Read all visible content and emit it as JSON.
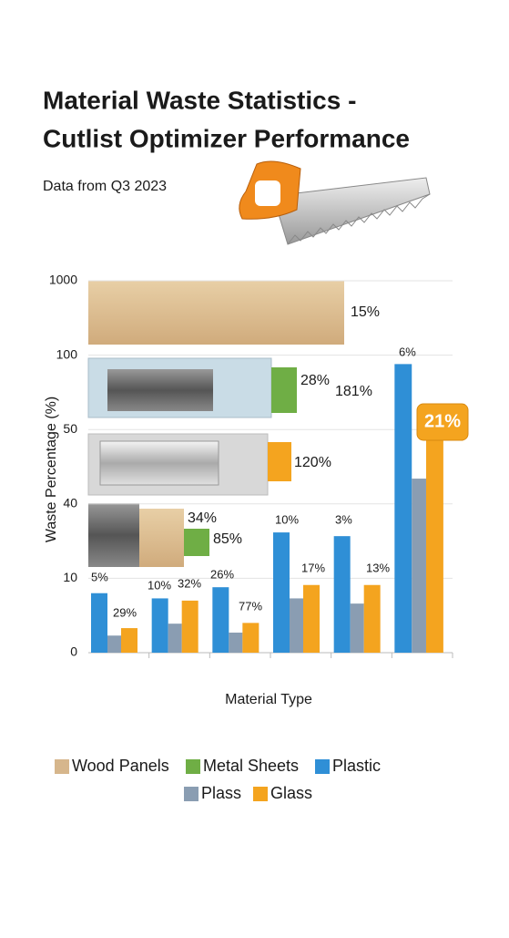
{
  "chart_data": {
    "type": "bar",
    "title_lines": [
      "Material Waste Statistics -",
      "Cutlist Optimizer Performance"
    ],
    "subtitle": "Data from Q3 2023",
    "y_label": "Waste Percentage (%)",
    "x_label": "Material Type",
    "y_scale": "tick-spaced",
    "ylim": [
      0,
      1000
    ],
    "yticks": [
      0,
      10,
      40,
      50,
      100,
      1000
    ],
    "grid": true,
    "categories": [
      null,
      null,
      null,
      null,
      null,
      null
    ],
    "series": [
      {
        "name": "Plastic",
        "color": "#2f8fd6",
        "values": [
          8,
          7.3,
          8.8,
          28.5,
          27,
          94
        ]
      },
      {
        "name": "Plass",
        "color": "#8a9db2",
        "values": [
          2.3,
          3.9,
          2.7,
          7.3,
          6.6,
          43.4
        ]
      },
      {
        "name": "Glass",
        "color": "#f4a41f",
        "values": [
          3.3,
          7,
          4,
          9.1,
          9.1,
          50
        ]
      }
    ],
    "panels": [
      {
        "name": "Wood Panels",
        "color": "#d6b68c"
      },
      {
        "name": "Metal Sheets",
        "color": "#6fae45"
      }
    ],
    "annotations": [
      {
        "text": "15%"
      },
      {
        "text": "28%"
      },
      {
        "text": "181%"
      },
      {
        "text": "120%"
      },
      {
        "text": "34%"
      },
      {
        "text": "85%"
      },
      {
        "text": "5%"
      },
      {
        "text": "29%"
      },
      {
        "text": "10%"
      },
      {
        "text": "32%"
      },
      {
        "text": "26%"
      },
      {
        "text": "77%"
      },
      {
        "text": "10%"
      },
      {
        "text": "17%"
      },
      {
        "text": "3%"
      },
      {
        "text": "13%"
      },
      {
        "text": "6%"
      },
      {
        "text": "21%"
      }
    ]
  }
}
